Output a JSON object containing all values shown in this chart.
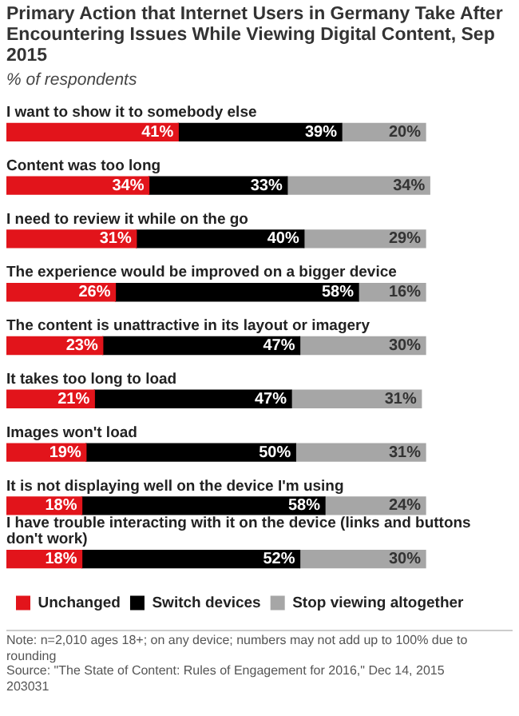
{
  "chart_data": {
    "type": "bar",
    "orientation": "horizontal",
    "stacked": true,
    "title": "Primary Action that Internet Users in Germany Take After Encountering Issues While Viewing Digital Content, Sep 2015",
    "subtitle": "% of respondents",
    "categories": [
      "I want to show it to somebody else",
      "Content was too long",
      "I need to review it while on the go",
      "The experience would be improved on a bigger device",
      "The content is unattractive in its layout or imagery",
      "It takes too long to load",
      "Images won't load",
      "It is not displaying well on the device I'm using",
      "I have trouble interacting with it on the device (links and buttons don't work)"
    ],
    "series": [
      {
        "name": "Unchanged",
        "color": "#e2141b",
        "values": [
          41,
          34,
          31,
          26,
          23,
          21,
          19,
          18,
          18
        ],
        "value_labels": [
          "41%",
          "34%",
          "31%",
          "26%",
          "23%",
          "21%",
          "19%",
          "18%",
          "18%"
        ]
      },
      {
        "name": "Switch devices",
        "color": "#000000",
        "values": [
          39,
          33,
          40,
          58,
          47,
          47,
          50,
          58,
          52
        ],
        "value_labels": [
          "39%",
          "33%",
          "40%",
          "58%",
          "47%",
          "47%",
          "50%",
          "58%",
          "52%"
        ]
      },
      {
        "name": "Stop viewing altogether",
        "color": "#a6a6a6",
        "values": [
          20,
          34,
          29,
          16,
          30,
          31,
          31,
          24,
          30
        ],
        "value_labels": [
          "20%",
          "34%",
          "29%",
          "16%",
          "30%",
          "31%",
          "31%",
          "24%",
          "30%"
        ]
      }
    ],
    "legend": "bottom",
    "grid": false,
    "annotations": [
      "Note: n=2,010 ages 18+; on any device; numbers may not add up to 100% due to rounding",
      "Source: \"The State of Content: Rules of Engagement for 2016,\" Dec 14, 2015",
      "203031"
    ]
  }
}
